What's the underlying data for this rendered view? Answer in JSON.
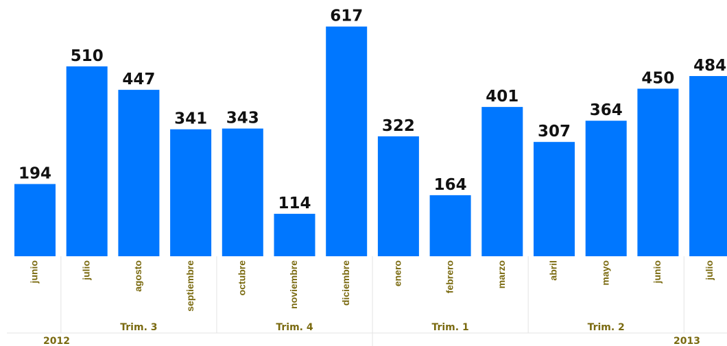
{
  "chart_data": {
    "type": "bar",
    "categories": [
      "junio",
      "julio",
      "agosto",
      "septiembre",
      "octubre",
      "noviembre",
      "diciembre",
      "enero",
      "febrero",
      "marzo",
      "abril",
      "mayo",
      "junio",
      "julio"
    ],
    "values": [
      194,
      510,
      447,
      341,
      343,
      114,
      617,
      322,
      164,
      401,
      307,
      364,
      450,
      484
    ],
    "quarters": [
      {
        "label": "",
        "start": 0,
        "end": 0
      },
      {
        "label": "Trim. 3",
        "start": 1,
        "end": 3
      },
      {
        "label": "Trim. 4",
        "start": 4,
        "end": 6
      },
      {
        "label": "Trim. 1",
        "start": 7,
        "end": 9
      },
      {
        "label": "Trim. 2",
        "start": 10,
        "end": 12
      },
      {
        "label": "",
        "start": 13,
        "end": 13
      }
    ],
    "years": [
      {
        "label": "2012",
        "start": 0,
        "end": 6
      },
      {
        "label": "2013",
        "start": 7,
        "end": 13
      }
    ],
    "title": "",
    "xlabel": "",
    "ylabel": "",
    "ylim": [
      0,
      640
    ],
    "bar_color": "#0077ff",
    "label_color": "#7a6a10",
    "grid": false,
    "legend": false
  }
}
